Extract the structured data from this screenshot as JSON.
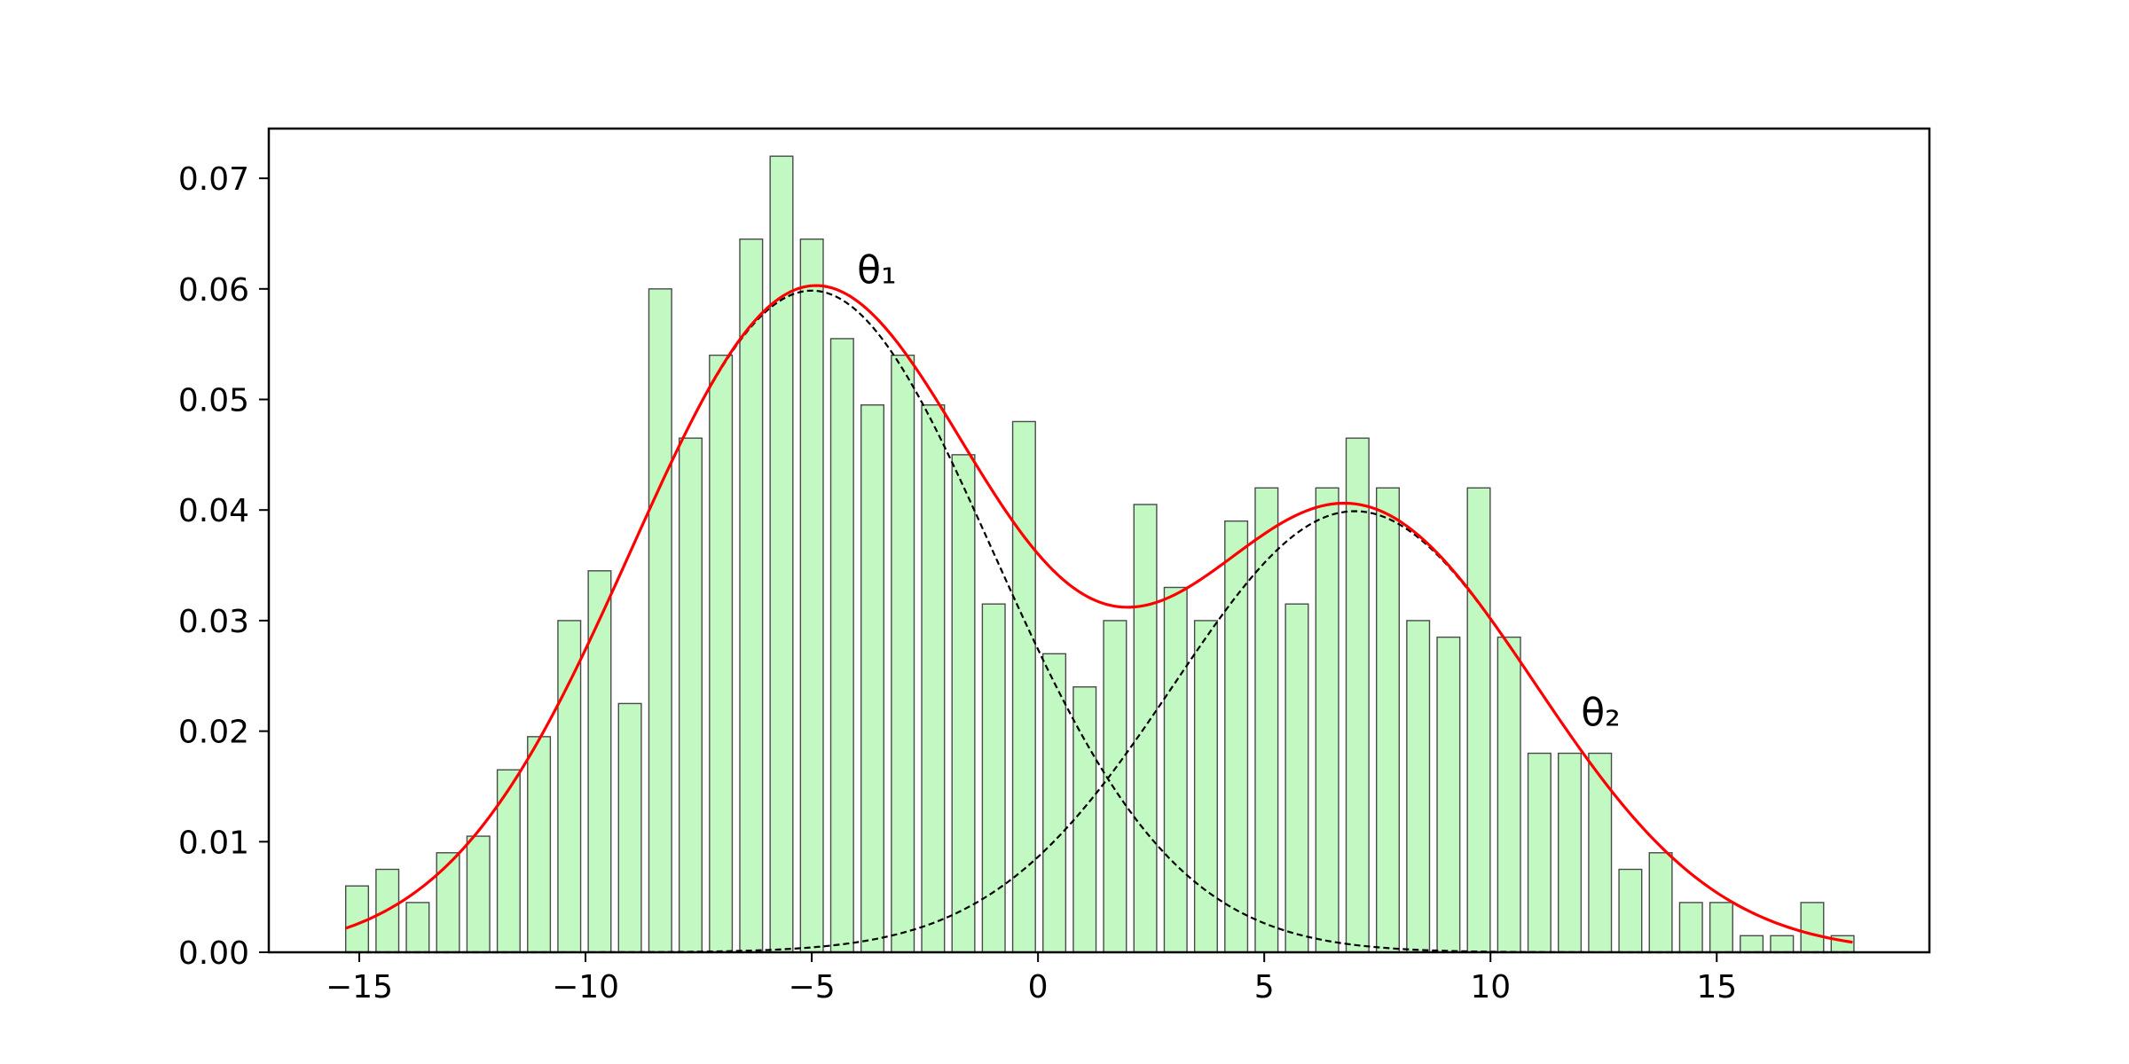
{
  "chart_data": {
    "type": "bar",
    "title": "",
    "xlabel": "",
    "ylabel": "",
    "xlim": [
      -17,
      19.7
    ],
    "ylim": [
      0,
      0.0745
    ],
    "x_ticks": [
      -15,
      -10,
      -5,
      0,
      5,
      10,
      15
    ],
    "x_tick_labels": [
      "−15",
      "−10",
      "−5",
      "0",
      "5",
      "10",
      "15"
    ],
    "y_ticks": [
      0,
      0.01,
      0.02,
      0.03,
      0.04,
      0.05,
      0.06,
      0.07
    ],
    "y_tick_labels": [
      "0.00",
      "0.01",
      "0.02",
      "0.03",
      "0.04",
      "0.05",
      "0.06",
      "0.07"
    ],
    "grid": false,
    "legend": "none",
    "histogram": {
      "bin_start": -15.3,
      "bin_width": 0.67,
      "bar_width_fraction": 0.75,
      "fill_color": "#c2f9c2",
      "edge_color": "#4a4a4a",
      "values": [
        0.006,
        0.0075,
        0.0045,
        0.009,
        0.0105,
        0.0165,
        0.0195,
        0.03,
        0.0345,
        0.0225,
        0.06,
        0.0465,
        0.054,
        0.0645,
        0.072,
        0.0645,
        0.0555,
        0.0495,
        0.054,
        0.0495,
        0.045,
        0.0315,
        0.048,
        0.027,
        0.024,
        0.03,
        0.0405,
        0.033,
        0.03,
        0.039,
        0.042,
        0.0315,
        0.042,
        0.0465,
        0.042,
        0.03,
        0.0285,
        0.042,
        0.0285,
        0.018,
        0.018,
        0.018,
        0.0075,
        0.009,
        0.0045,
        0.0045,
        0.0015,
        0.0015,
        0.0045,
        0.0015
      ]
    },
    "mixture_fit": {
      "range": [
        -15.3,
        18.0
      ],
      "total_color": "#ff0000",
      "component_color": "#000000",
      "components": [
        {
          "name": "θ₁",
          "mean": -5.0,
          "sd": 4.0,
          "weight": 0.6
        },
        {
          "name": "θ₂",
          "mean": 7.0,
          "sd": 4.0,
          "weight": 0.4
        }
      ]
    },
    "annotations": [
      {
        "text": "θ₁",
        "x": -4.0,
        "y": 0.0605
      },
      {
        "text": "θ₂",
        "x": 12.0,
        "y": 0.0205
      }
    ]
  }
}
